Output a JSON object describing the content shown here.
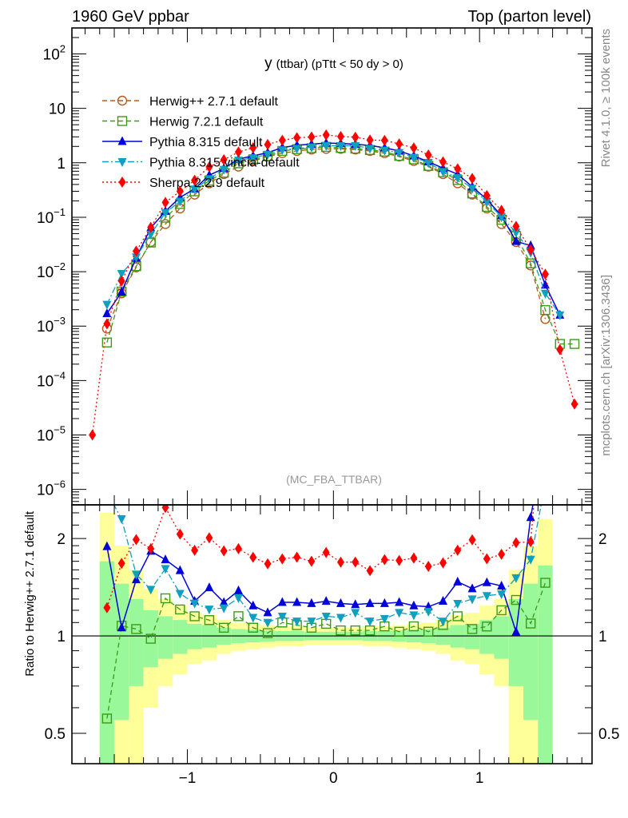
{
  "header": {
    "left": "1960 GeV ppbar",
    "right": "Top (parton level)",
    "side_top": "Rivet 4.1.0, ≥ 100k events",
    "side_bottom": "mcplots.cern.ch [arXiv:1306.3436]",
    "analysis": "(MC_FBA_TTBAR)"
  },
  "chart_data": [
    {
      "type": "line",
      "panel": "main",
      "title_main": "y",
      "title_rest": "(ttbar) (pTtt < 50 dy > 0)",
      "yscale": "log",
      "ylim": [
        5.2e-07,
        300
      ],
      "xlim": [
        -1.79,
        1.77
      ],
      "ytick_labels": [
        {
          "v": 100,
          "base": "10",
          "exp": "2"
        },
        {
          "v": 10,
          "base": "10",
          "exp": ""
        },
        {
          "v": 1,
          "base": "1",
          "exp": ""
        },
        {
          "v": 0.1,
          "base": "10",
          "exp": "−1"
        },
        {
          "v": 0.01,
          "base": "10",
          "exp": "−2"
        },
        {
          "v": 0.001,
          "base": "10",
          "exp": "−3"
        },
        {
          "v": 0.0001,
          "base": "10",
          "exp": "−4"
        },
        {
          "v": 1e-05,
          "base": "10",
          "exp": "−5"
        },
        {
          "v": 1e-06,
          "base": "10",
          "exp": "−6"
        }
      ],
      "legend_position": "top-left",
      "x": [
        -1.65,
        -1.55,
        -1.45,
        -1.35,
        -1.25,
        -1.15,
        -1.05,
        -0.95,
        -0.85,
        -0.75,
        -0.65,
        -0.55,
        -0.45,
        -0.35,
        -0.25,
        -0.15,
        -0.05,
        0.05,
        0.15,
        0.25,
        0.35,
        0.45,
        0.55,
        0.65,
        0.75,
        0.85,
        0.95,
        1.05,
        1.15,
        1.25,
        1.35,
        1.45,
        1.55,
        1.65
      ],
      "series": [
        {
          "name": "Herwig++ 2.7.1 default",
          "color": "#b35a1f",
          "marker": "circle",
          "dash": "6,4",
          "values": [
            null,
            0.0009,
            0.004,
            0.012,
            0.035,
            0.075,
            0.145,
            0.26,
            0.42,
            0.62,
            0.85,
            1.08,
            1.3,
            1.5,
            1.65,
            1.75,
            1.8,
            1.8,
            1.75,
            1.65,
            1.5,
            1.3,
            1.08,
            0.85,
            0.62,
            0.42,
            0.26,
            0.145,
            0.075,
            0.035,
            0.013,
            0.00135,
            null,
            null
          ]
        },
        {
          "name": "Herwig 7.2.1 default",
          "color": "#3d9a17",
          "marker": "square",
          "dash": "6,4",
          "values": [
            null,
            0.0005,
            0.0043,
            0.0126,
            0.0343,
            0.098,
            0.175,
            0.299,
            0.47,
            0.657,
            0.978,
            1.145,
            1.326,
            1.65,
            1.782,
            1.855,
            1.962,
            1.872,
            1.82,
            1.716,
            1.605,
            1.339,
            1.156,
            0.876,
            0.67,
            0.483,
            0.273,
            0.155,
            0.09,
            0.0452,
            0.0142,
            0.00197,
            0.00047,
            0.00047
          ]
        },
        {
          "name": "Pythia 8.315 default",
          "color": "#0000dd",
          "marker": "triangle-up",
          "dash": "",
          "values": [
            null,
            0.0017,
            0.00424,
            0.0179,
            0.064,
            0.129,
            0.231,
            0.333,
            0.592,
            0.787,
            1.173,
            1.339,
            1.534,
            1.905,
            2.096,
            2.205,
            2.304,
            2.268,
            2.188,
            2.079,
            1.89,
            1.651,
            1.339,
            1.046,
            0.794,
            0.617,
            0.364,
            0.212,
            0.107,
            0.036,
            0.0302,
            0.0057,
            0.0016,
            null
          ]
        },
        {
          "name": "Pythia 8.315 vincia-default",
          "color": "#0f9fc0",
          "marker": "triangle-down",
          "dash": "8,3,2,3",
          "values": [
            null,
            0.0025,
            0.0092,
            0.0186,
            0.0487,
            0.121,
            0.196,
            0.328,
            0.508,
            0.756,
            1.114,
            1.231,
            1.43,
            1.725,
            1.832,
            1.943,
            2.07,
            2.052,
            2.065,
            1.832,
            1.695,
            1.534,
            1.253,
            1.012,
            0.688,
            0.529,
            0.338,
            0.193,
            0.101,
            0.0529,
            0.0224,
            0.004,
            0.0016,
            null
          ]
        },
        {
          "name": "Sherpa 2.2.9 default",
          "color": "#ff0000",
          "marker": "diamond",
          "dash": "2,3",
          "values": [
            1e-05,
            0.0011,
            0.0067,
            0.0238,
            0.0651,
            0.187,
            0.299,
            0.478,
            0.844,
            1.135,
            1.581,
            1.89,
            2.171,
            2.595,
            2.888,
            2.975,
            3.258,
            3.042,
            2.958,
            2.624,
            2.58,
            2.223,
            1.879,
            1.394,
            1.042,
            0.773,
            0.515,
            0.251,
            0.134,
            0.0679,
            0.0254,
            0.009,
            0.00037,
            3.7e-05
          ]
        }
      ]
    },
    {
      "type": "line",
      "panel": "ratio",
      "ylabel": "Ratio to Herwig++ 2.7.1 default",
      "reference": "Herwig++ 2.7.1 default",
      "yscale": "log",
      "ylim": [
        0.403,
        2.54
      ],
      "ytick_labels": [
        {
          "v": 2,
          "label": "2"
        },
        {
          "v": 1,
          "label": "1"
        },
        {
          "v": 0.5,
          "label": "0.5"
        }
      ],
      "xtick_labels": [
        {
          "v": -1,
          "label": "−1"
        },
        {
          "v": 0,
          "label": "0"
        },
        {
          "v": 1,
          "label": "1"
        }
      ],
      "band_relative_error": [
        null,
        0.7,
        0.45,
        0.3,
        0.2,
        0.15,
        0.12,
        0.09,
        0.08,
        0.06,
        0.05,
        0.045,
        0.04,
        0.035,
        0.035,
        0.03,
        0.03,
        0.03,
        0.03,
        0.035,
        0.035,
        0.04,
        0.045,
        0.05,
        0.06,
        0.08,
        0.09,
        0.12,
        0.15,
        0.3,
        0.45,
        0.65,
        null,
        null
      ],
      "band_colors": {
        "inner": "#99f899",
        "outer": "#ffff99"
      }
    }
  ]
}
